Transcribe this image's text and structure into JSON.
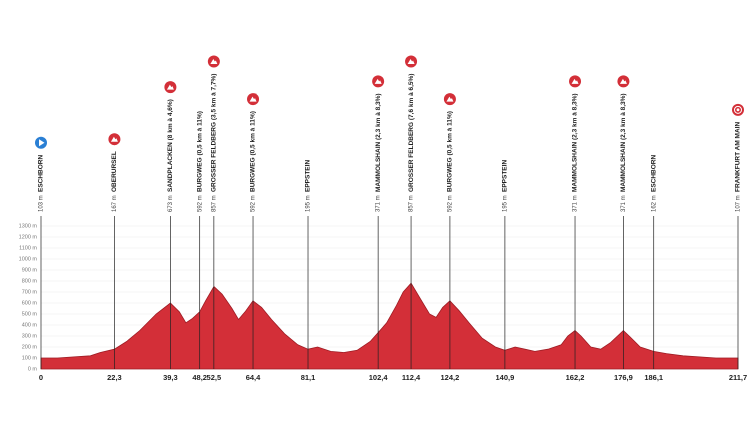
{
  "chart_data": {
    "type": "area",
    "color": "#d32f38",
    "grid": true,
    "x": [
      0,
      5,
      10,
      15,
      18,
      22.3,
      26,
      30,
      35,
      39.3,
      42,
      44,
      46,
      48.2,
      50,
      52.5,
      55,
      58,
      60,
      62,
      64.4,
      67,
      70,
      74,
      78,
      81.1,
      84,
      88,
      92,
      96,
      100,
      102.4,
      105,
      108,
      110,
      112.4,
      115,
      118,
      120,
      122,
      124.2,
      127,
      130,
      134,
      138,
      140.9,
      144,
      147,
      150,
      154,
      158,
      160,
      162.2,
      164,
      167,
      170,
      173,
      176.9,
      179,
      182,
      186.1,
      190,
      195,
      200,
      205,
      211.7
    ],
    "y": [
      100,
      100,
      110,
      120,
      150,
      180,
      250,
      350,
      500,
      600,
      520,
      420,
      460,
      520,
      620,
      750,
      680,
      550,
      450,
      520,
      620,
      560,
      450,
      320,
      220,
      180,
      200,
      160,
      150,
      170,
      250,
      330,
      420,
      580,
      700,
      780,
      650,
      500,
      470,
      560,
      620,
      530,
      420,
      280,
      200,
      170,
      200,
      180,
      160,
      180,
      220,
      300,
      350,
      300,
      200,
      180,
      240,
      350,
      290,
      200,
      160,
      140,
      120,
      110,
      100,
      100
    ],
    "xlim": [
      0,
      211.7
    ],
    "ylim": [
      0,
      1300
    ],
    "yticks": [
      {
        "value": 0,
        "label": "0 m"
      },
      {
        "value": 100,
        "label": "100 m"
      },
      {
        "value": 200,
        "label": "200 m"
      },
      {
        "value": 300,
        "label": "300 m"
      },
      {
        "value": 400,
        "label": "400 m"
      },
      {
        "value": 500,
        "label": "500 m"
      },
      {
        "value": 600,
        "label": "600 m"
      },
      {
        "value": 700,
        "label": "700 m"
      },
      {
        "value": 800,
        "label": "800 m"
      },
      {
        "value": 900,
        "label": "900 m"
      },
      {
        "value": 1000,
        "label": "1000 m"
      },
      {
        "value": 1100,
        "label": "1100 m"
      },
      {
        "value": 1200,
        "label": "1200 m"
      },
      {
        "value": 1300,
        "label": "1300 m"
      }
    ],
    "xticks": [
      0,
      {
        "value": 22.3,
        "label": "22,3"
      },
      {
        "value": 39.3,
        "label": "39,3"
      },
      {
        "value": 48.2,
        "label": "48,2"
      },
      {
        "value": 52.5,
        "label": "52,5"
      },
      {
        "value": 64.4,
        "label": "64,4"
      },
      {
        "value": 81.1,
        "label": "81,1"
      },
      {
        "value": 102.4,
        "label": "102,4"
      },
      {
        "value": 112.4,
        "label": "112,4"
      },
      {
        "value": 124.2,
        "label": "124,2"
      },
      {
        "value": 140.9,
        "label": "140,9"
      },
      {
        "value": 162.2,
        "label": "162,2"
      },
      {
        "value": 176.9,
        "label": "176,9"
      },
      {
        "value": 186.1,
        "label": "186,1"
      },
      {
        "value": 211.7,
        "label": "211,7"
      }
    ],
    "waypoints": [
      {
        "km": 0,
        "name": "ESCHBORN",
        "altitude": {
          "value": 103,
          "label": "103 m"
        },
        "icon": "start"
      },
      {
        "km": 22.3,
        "name": "OBERURSEL",
        "altitude": {
          "value": 167,
          "label": "167 m"
        },
        "icon": "climb"
      },
      {
        "km": 39.3,
        "name": "SANDPLACKEN (8 km à 4,6%)",
        "altitude": {
          "value": 673,
          "label": "673 m"
        },
        "icon": "climb"
      },
      {
        "km": 48.2,
        "name": "BURGWEG (0,5 km à 11%)",
        "altitude": {
          "value": 592,
          "label": "592 m"
        }
      },
      {
        "km": 52.5,
        "name": "GROSSER FELDBERG (3,5 km à 7,7%)",
        "altitude": {
          "value": 857,
          "label": "857 m"
        },
        "icon": "climb"
      },
      {
        "km": 64.4,
        "name": "BURGWEG (0,5 km à 11%)",
        "altitude": {
          "value": 592,
          "label": "592 m"
        },
        "icon": "climb"
      },
      {
        "km": 81.1,
        "name": "EPPSTEIN",
        "altitude": {
          "value": 195,
          "label": "195 m"
        }
      },
      {
        "km": 102.4,
        "name": "MAMMOLSHAIN (2,3 km à 8,3%)",
        "altitude": {
          "value": 371,
          "label": "371 m"
        },
        "icon": "climb"
      },
      {
        "km": 112.4,
        "name": "GROSSER FELDBERG (7,6 km à 6,5%)",
        "altitude": {
          "value": 857,
          "label": "857 m"
        },
        "icon": "climb"
      },
      {
        "km": 124.2,
        "name": "BURGWEG (0,5 km à 11%)",
        "altitude": {
          "value": 592,
          "label": "592 m"
        },
        "icon": "climb"
      },
      {
        "km": 140.9,
        "name": "EPPSTEIN",
        "altitude": {
          "value": 195,
          "label": "195 m"
        }
      },
      {
        "km": 162.2,
        "name": "MAMMOLSHAIN (2,3 km à 8,3%)",
        "altitude": {
          "value": 371,
          "label": "371 m"
        },
        "icon": "climb"
      },
      {
        "km": 176.9,
        "name": "MAMMOLSHAIN (2,3 km à 8,3%)",
        "altitude": {
          "value": 371,
          "label": "371 m"
        },
        "icon": "climb"
      },
      {
        "km": 186.1,
        "name": "ESCHBORN",
        "altitude": {
          "value": 162,
          "label": "162 m"
        }
      },
      {
        "km": 211.7,
        "name": "FRANKFURT AM MAIN",
        "altitude": {
          "value": 107,
          "label": "107 m"
        },
        "icon": "finish"
      }
    ]
  }
}
